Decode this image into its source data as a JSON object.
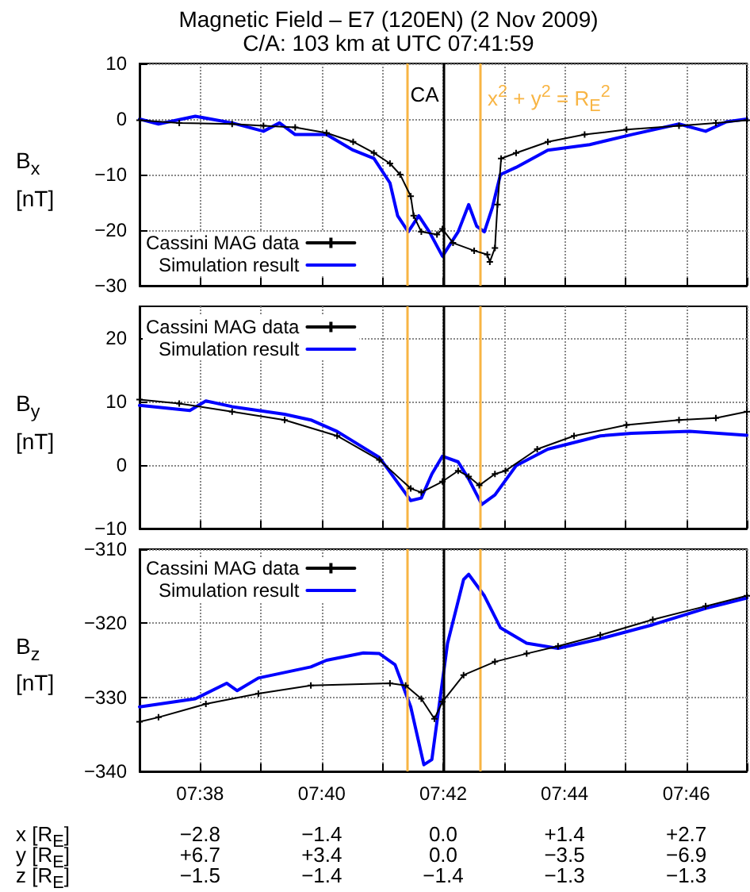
{
  "chart_data": [
    {
      "type": "line",
      "title": "Magnetic Field  – E7 (120EN) (2 Nov 2009)",
      "subtitle": "C/A: 103 km at UTC 07:41:59",
      "ylabel": "B$_{x}$\n[nT]",
      "xlim": [
        7.6167,
        7.7833
      ],
      "xticks": [
        {
          "value": 7.6167,
          "label": null
        },
        {
          "value": 7.6333,
          "label": null
        },
        {
          "value": 7.65,
          "label": null
        },
        {
          "value": 7.6667,
          "label": null
        },
        {
          "value": 7.6833,
          "label": null
        },
        {
          "value": 7.7,
          "label": null
        },
        {
          "value": 7.7167,
          "label": null
        },
        {
          "value": 7.7333,
          "label": null
        },
        {
          "value": 7.75,
          "label": null
        },
        {
          "value": 7.7667,
          "label": null
        },
        {
          "value": 7.7833,
          "label": null
        }
      ],
      "ylim": [
        -30,
        10
      ],
      "yticks": [
        10,
        0,
        {
          "value": -10,
          "label": "−10"
        },
        {
          "value": -20,
          "label": "−20"
        },
        {
          "value": -30,
          "label": "−30"
        }
      ],
      "tick_labels": "y",
      "grid": true,
      "legend": "bottom left",
      "ref_lines": [
        {
          "axis": "x",
          "value": 7.69,
          "color": "#f8b544"
        },
        {
          "axis": "x",
          "value": 7.6997,
          "label": "CA",
          "color": "#000000"
        },
        {
          "axis": "x",
          "value": 7.71,
          "label": "x$^{2}$ + y$^{2}$ = R$_{E}$$^{2}$",
          "color": "#f8b544"
        }
      ],
      "series": [
        {
          "name": "Cassini MAG data",
          "color": "#000000",
          "marker": "cross",
          "x": [
            7.6167,
            7.6276,
            7.6421,
            7.6507,
            7.6594,
            7.668,
            7.6753,
            7.681,
            7.6854,
            7.6882,
            7.6911,
            7.6919,
            7.694,
            7.6983,
            7.6998,
            7.7027,
            7.7085,
            7.7121,
            7.7128,
            7.7142,
            7.7149,
            7.7159,
            7.72,
            7.7287,
            7.7388,
            7.7503,
            7.7647,
            7.7748,
            7.7833
          ],
          "values": [
            -0.2,
            -0.7,
            -0.9,
            -1.2,
            -1.5,
            -2.5,
            -4.1,
            -6.1,
            -8,
            -10,
            -13.9,
            -17.4,
            -20.3,
            -20.8,
            -19.8,
            -22.3,
            -23.7,
            -24.4,
            -25.7,
            -23.2,
            -15.4,
            -7.1,
            -6.1,
            -4.1,
            -2.8,
            -1.9,
            -1.2,
            -0.7,
            -0.2
          ]
        },
        {
          "name": "Simulation result",
          "color": "#0000ff",
          "marker": "none",
          "x": [
            7.6167,
            7.6219,
            7.632,
            7.6421,
            7.6507,
            7.6551,
            7.6594,
            7.668,
            7.6753,
            7.681,
            7.6854,
            7.6875,
            7.6904,
            7.6933,
            7.6962,
            7.6998,
            7.7041,
            7.707,
            7.7092,
            7.7113,
            7.7135,
            7.7157,
            7.72,
            7.7287,
            7.7402,
            7.7517,
            7.7647,
            7.772,
            7.7777,
            7.7833
          ],
          "values": [
            0,
            -0.9,
            0.5,
            -0.7,
            -2.2,
            -0.7,
            -2.8,
            -2.8,
            -5.6,
            -7.1,
            -11.5,
            -17.4,
            -20.3,
            -17.4,
            -20.3,
            -24.7,
            -20.3,
            -15.4,
            -19.3,
            -20.3,
            -15.9,
            -10,
            -8.7,
            -5.6,
            -4.6,
            -2.8,
            -0.9,
            -2.2,
            -0.5,
            0
          ]
        }
      ]
    },
    {
      "type": "line",
      "ylabel": "B$_{y}$\n[nT]",
      "xlim": [
        7.6167,
        7.7833
      ],
      "xticks": [
        {
          "value": 7.6167,
          "label": null
        },
        {
          "value": 7.6333,
          "label": null
        },
        {
          "value": 7.65,
          "label": null
        },
        {
          "value": 7.6667,
          "label": null
        },
        {
          "value": 7.6833,
          "label": null
        },
        {
          "value": 7.7,
          "label": null
        },
        {
          "value": 7.7167,
          "label": null
        },
        {
          "value": 7.7333,
          "label": null
        },
        {
          "value": 7.75,
          "label": null
        },
        {
          "value": 7.7667,
          "label": null
        },
        {
          "value": 7.7833,
          "label": null
        }
      ],
      "ylim": [
        -10,
        25
      ],
      "yticks": [
        20,
        10,
        0,
        {
          "value": -10,
          "label": "−10"
        }
      ],
      "tick_labels": "y",
      "grid": true,
      "legend": "top left",
      "ref_lines": [
        {
          "axis": "x",
          "value": 7.69,
          "color": "#f8b544"
        },
        {
          "axis": "x",
          "value": 7.6997,
          "color": "#000000"
        },
        {
          "axis": "x",
          "value": 7.71,
          "color": "#f8b544"
        }
      ],
      "series": [
        {
          "name": "Cassini MAG data",
          "color": "#000000",
          "marker": "cross",
          "x": [
            7.6167,
            7.6276,
            7.6421,
            7.6565,
            7.6709,
            7.6825,
            7.6911,
            7.694,
            7.6998,
            7.7041,
            7.707,
            7.7099,
            7.7142,
            7.7171,
            7.7258,
            7.7359,
            7.7503,
            7.7647,
            7.7748,
            7.7833
          ],
          "values": [
            10.3,
            9.7,
            8.4,
            7.1,
            4.6,
            0.8,
            -3.7,
            -4.3,
            -2.6,
            -0.9,
            -1.8,
            -3.2,
            -1.4,
            -0.9,
            2.5,
            4.6,
            6.3,
            7.1,
            7.4,
            8.4
          ]
        },
        {
          "name": "Simulation result",
          "color": "#0000ff",
          "marker": "none",
          "x": [
            7.6167,
            7.6305,
            7.6349,
            7.6421,
            7.6565,
            7.6637,
            7.6709,
            7.6825,
            7.6868,
            7.6911,
            7.694,
            7.6969,
            7.6998,
            7.7041,
            7.707,
            7.7106,
            7.7142,
            7.72,
            7.7287,
            7.7431,
            7.7517,
            7.7676,
            7.7833
          ],
          "values": [
            9.4,
            8.6,
            10.1,
            9.2,
            8.0,
            7.1,
            5.3,
            1.2,
            -2.2,
            -5.6,
            -5.2,
            -1.4,
            1.4,
            0.5,
            -2.2,
            -6.2,
            -4.7,
            -0.1,
            2.5,
            4.6,
            5.0,
            5.3,
            4.7
          ]
        }
      ]
    },
    {
      "type": "line",
      "ylabel": "B$_{z}$\n[nT]",
      "xlim": [
        7.6167,
        7.7833
      ],
      "xticks": [
        {
          "value": 7.6167,
          "label": null
        },
        {
          "value": 7.6333,
          "label": "07:38"
        },
        {
          "value": 7.65,
          "label": null
        },
        {
          "value": 7.6667,
          "label": "07:40"
        },
        {
          "value": 7.6833,
          "label": null
        },
        {
          "value": 7.7,
          "label": "07:42"
        },
        {
          "value": 7.7167,
          "label": null
        },
        {
          "value": 7.7333,
          "label": "07:44"
        },
        {
          "value": 7.75,
          "label": null
        },
        {
          "value": 7.7667,
          "label": "07:46"
        },
        {
          "value": 7.7833,
          "label": null
        }
      ],
      "ylim": [
        -340,
        -310
      ],
      "yticks": [
        {
          "value": -310,
          "label": "−310"
        },
        {
          "value": -320,
          "label": "−320"
        },
        {
          "value": -330,
          "label": "−330"
        },
        {
          "value": -340,
          "label": "−340"
        }
      ],
      "grid": true,
      "legend": "top left",
      "ref_lines": [
        {
          "axis": "x",
          "value": 7.69,
          "color": "#f8b544"
        },
        {
          "axis": "x",
          "value": 7.6997,
          "color": "#000000"
        },
        {
          "axis": "x",
          "value": 7.71,
          "color": "#f8b544"
        }
      ],
      "annotations": [
        "x [R$_{E}$]\t−2.8\t−1.4\t0.0\t+1.4\t+2.7",
        "y [R$_{E}$]\t+6.7\t+3.4\t0.0\t−3.5\t−6.9",
        "z [R$_{E}$]\t−1.5\t−1.4\t−1.4\t−1.3\t−1.3"
      ],
      "series": [
        {
          "name": "Cassini MAG data",
          "color": "#000000",
          "marker": "cross",
          "x": [
            7.6167,
            7.6219,
            7.6349,
            7.6493,
            7.6637,
            7.6854,
            7.6897,
            7.694,
            7.6976,
            7.6998,
            7.7056,
            7.7142,
            7.7229,
            7.7315,
            7.7431,
            7.7575,
            7.772,
            7.7833
          ],
          "values": [
            -333.3,
            -332.7,
            -330.9,
            -329.5,
            -328.4,
            -328.1,
            -328.4,
            -330.2,
            -332.9,
            -330.6,
            -327,
            -325.2,
            -324.1,
            -323.1,
            -321.6,
            -319.5,
            -317.7,
            -316.3
          ]
        },
        {
          "name": "Simulation result",
          "color": "#0000ff",
          "marker": "none",
          "x": [
            7.6167,
            7.632,
            7.6406,
            7.6435,
            7.6493,
            7.6637,
            7.668,
            7.6781,
            7.6825,
            7.6868,
            7.6911,
            7.6947,
            7.6969,
            7.7012,
            7.7056,
            7.707,
            7.7113,
            7.7157,
            7.7229,
            7.7315,
            7.7431,
            7.7575,
            7.772,
            7.7833
          ],
          "values": [
            -331.3,
            -330.2,
            -328.1,
            -329.1,
            -327.4,
            -325.9,
            -325,
            -324,
            -324.1,
            -325.6,
            -331.3,
            -339.1,
            -338.4,
            -322.7,
            -314.1,
            -313.4,
            -316.3,
            -320.6,
            -322.7,
            -323.4,
            -322.1,
            -320.2,
            -318,
            -316.6
          ]
        }
      ]
    }
  ]
}
